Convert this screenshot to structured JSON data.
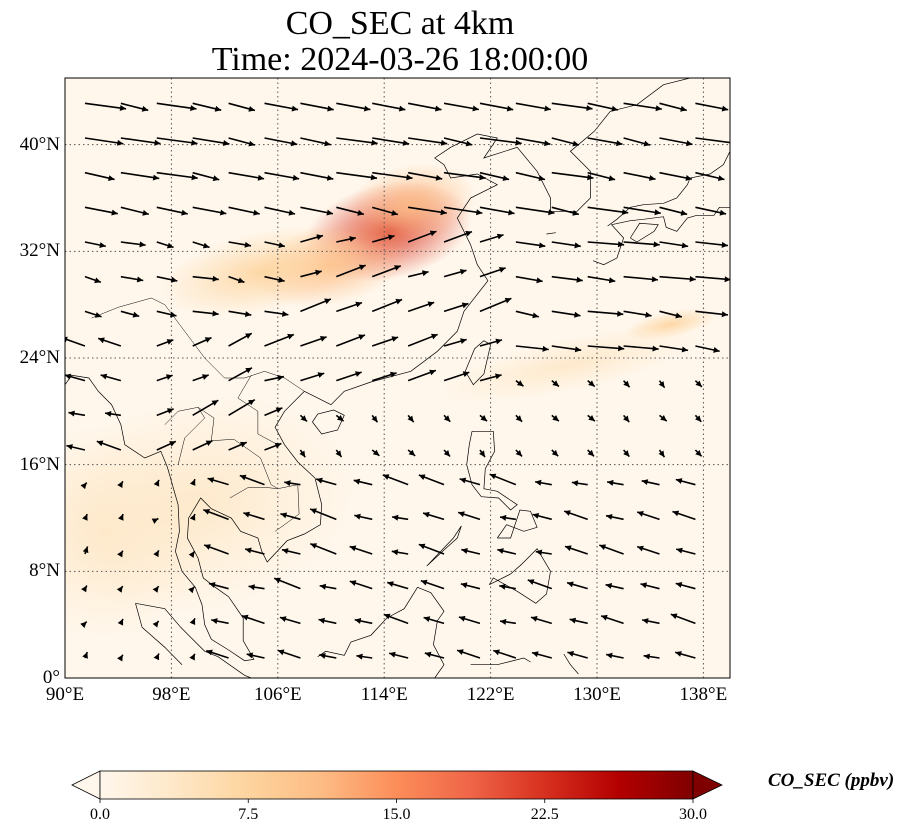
{
  "figure": {
    "title_line1": "CO_SEC at 4km",
    "title_line2": "Time: 2024-03-26 18:00:00"
  },
  "map": {
    "lon_range": [
      90,
      140
    ],
    "lat_range": [
      0,
      45
    ],
    "lon_ticks": [
      {
        "value": 90,
        "label": "90°E"
      },
      {
        "value": 98,
        "label": "98°E"
      },
      {
        "value": 106,
        "label": "106°E"
      },
      {
        "value": 114,
        "label": "114°E"
      },
      {
        "value": 122,
        "label": "122°E"
      },
      {
        "value": 130,
        "label": "130°E"
      },
      {
        "value": 138,
        "label": "138°E"
      }
    ],
    "lat_ticks": [
      {
        "value": 0,
        "label": "0°"
      },
      {
        "value": 8,
        "label": "8°N"
      },
      {
        "value": 16,
        "label": "16°N"
      },
      {
        "value": 24,
        "label": "24°N"
      },
      {
        "value": 32,
        "label": "32°N"
      },
      {
        "value": 40,
        "label": "40°N"
      }
    ],
    "gridlines": "dotted",
    "field_colormap": "OrRd",
    "field_plumes": [
      {
        "lon": 114.3,
        "lat": 33.5,
        "value": 14,
        "sigma_lon": 3.2,
        "sigma_lat": 1.8
      },
      {
        "lon": 110.0,
        "lat": 31.0,
        "value": 8,
        "sigma_lon": 3.0,
        "sigma_lat": 1.5
      },
      {
        "lon": 105.0,
        "lat": 30.5,
        "value": 4,
        "sigma_lon": 4.0,
        "sigma_lat": 1.5
      },
      {
        "lon": 116.0,
        "lat": 35.5,
        "value": 6,
        "sigma_lon": 2.5,
        "sigma_lat": 1.5
      },
      {
        "lon": 135.5,
        "lat": 26.5,
        "value": 4,
        "sigma_lon": 1.8,
        "sigma_lat": 0.5
      },
      {
        "lon": 128.0,
        "lat": 23.5,
        "value": 2.5,
        "sigma_lon": 5.0,
        "sigma_lat": 1.0
      },
      {
        "lon": 93.0,
        "lat": 11.0,
        "value": 3,
        "sigma_lon": 4.0,
        "sigma_lat": 4.0
      },
      {
        "lon": 100.0,
        "lat": 13.0,
        "value": 1.5,
        "sigma_lon": 6.0,
        "sigma_lat": 4.0
      }
    ],
    "wind_regions": [
      {
        "lon_range": [
          90,
          140
        ],
        "lat_range": [
          35,
          45
        ],
        "u": 8,
        "v": -1.5
      },
      {
        "lon_range": [
          90,
          106
        ],
        "lat_range": [
          26,
          35
        ],
        "u": 5,
        "v": -1
      },
      {
        "lon_range": [
          104,
          122
        ],
        "lat_range": [
          20,
          35
        ],
        "u": 6,
        "v": 2
      },
      {
        "lon_range": [
          122,
          140
        ],
        "lat_range": [
          24,
          35
        ],
        "u": 7,
        "v": -1
      },
      {
        "lon_range": [
          96,
          106
        ],
        "lat_range": [
          16,
          26
        ],
        "u": 5,
        "v": 2.5
      },
      {
        "lon_range": [
          106,
          140
        ],
        "lat_range": [
          16,
          24
        ],
        "u": 1.5,
        "v": -1.5
      },
      {
        "lon_range": [
          90,
          100
        ],
        "lat_range": [
          0,
          16
        ],
        "u": 0.5,
        "v": 1
      },
      {
        "lon_range": [
          100,
          140
        ],
        "lat_range": [
          0,
          16
        ],
        "u": -5,
        "v": 1.5
      }
    ]
  },
  "colorbar": {
    "min": 0.0,
    "max": 30.0,
    "ticks": [
      "0.0",
      "7.5",
      "15.0",
      "22.5",
      "30.0"
    ],
    "label": "CO_SEC (ppbv)",
    "extend": "both",
    "colors": [
      "#fff7ec",
      "#fee8c8",
      "#fdd49e",
      "#fdbb84",
      "#fc8d59",
      "#ef6548",
      "#d7301f",
      "#b30000",
      "#7f0000"
    ]
  }
}
